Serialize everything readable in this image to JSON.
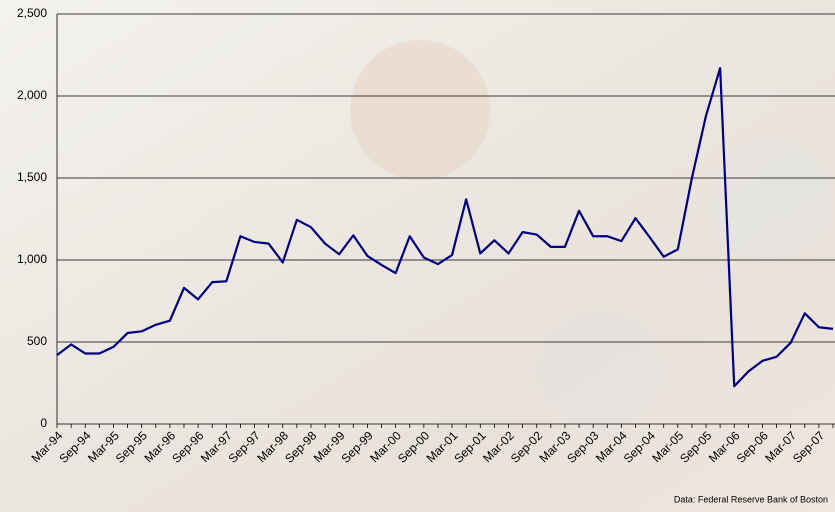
{
  "chart_data": {
    "type": "line",
    "source": "Data: Federal Reserve Bank of Boston",
    "categories": [
      "Mar-94",
      null,
      "Sep-94",
      null,
      "Mar-95",
      null,
      "Sep-95",
      null,
      "Mar-96",
      null,
      "Sep-96",
      null,
      "Mar-97",
      null,
      "Sep-97",
      null,
      "Mar-98",
      null,
      "Sep-98",
      null,
      "Mar-99",
      null,
      "Sep-99",
      null,
      "Mar-00",
      null,
      "Sep-00",
      null,
      "Mar-01",
      null,
      "Sep-01",
      null,
      "Mar-02",
      null,
      "Sep-02",
      null,
      "Mar-03",
      null,
      "Sep-03",
      null,
      "Mar-04",
      null,
      "Sep-04",
      null,
      "Mar-05",
      null,
      "Sep-05",
      null,
      "Mar-06",
      null,
      "Sep-06",
      null,
      "Mar-07",
      null,
      "Sep-07",
      null
    ],
    "values": [
      420,
      485,
      430,
      430,
      470,
      555,
      565,
      605,
      630,
      830,
      760,
      865,
      870,
      1145,
      1110,
      1100,
      985,
      1245,
      1200,
      1100,
      1035,
      1150,
      1025,
      970,
      920,
      1145,
      1015,
      975,
      1030,
      1370,
      1040,
      1120,
      1040,
      1170,
      1155,
      1080,
      1080,
      1300,
      1145,
      1145,
      1115,
      1255,
      1140,
      1020,
      1065,
      1500,
      1880,
      2170,
      230,
      320,
      385,
      410,
      495,
      675,
      590,
      580
    ],
    "color": "#000080",
    "ylim": [
      0,
      2500
    ],
    "yticks": [
      0,
      500,
      {
        "value": 1000,
        "label": "1,000"
      },
      {
        "value": 1500,
        "label": "1,500"
      },
      {
        "value": 2000,
        "label": "2,000"
      },
      {
        "value": 2500,
        "label": "2,500"
      }
    ],
    "grid": true
  }
}
